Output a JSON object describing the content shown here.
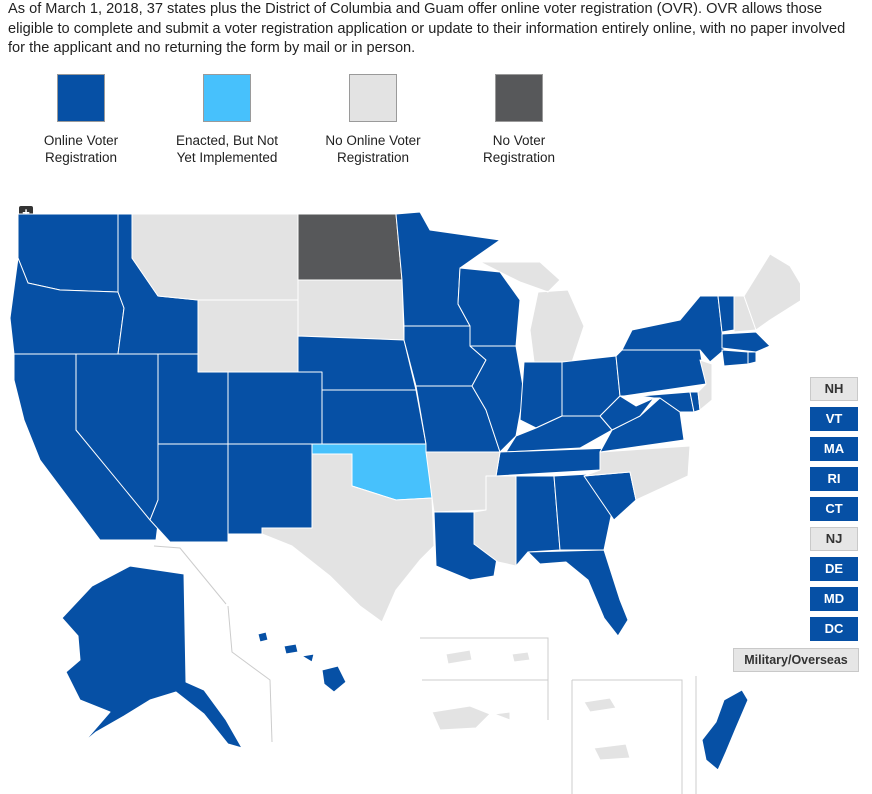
{
  "intro": "As of March 1, 2018, 37 states plus the District of Columbia and Guam offer online voter registration (OVR). OVR allows those eligible to complete and submit a voter registration application or update to their information entirely online, with no paper involved for the applicant and no returning the form by mail or in person.",
  "legend": [
    {
      "label_line1": "Online Voter",
      "label_line2": "Registration",
      "color": "#0650a5"
    },
    {
      "label_line1": "Enacted, But Not",
      "label_line2": "Yet Implemented",
      "color": "#47c1fc"
    },
    {
      "label_line1": "No Online Voter",
      "label_line2": "Registration",
      "color": "#e3e3e3"
    },
    {
      "label_line1": "No Voter",
      "label_line2": "Registration",
      "color": "#57585a"
    }
  ],
  "zoom": {
    "in": "+",
    "out": "−"
  },
  "small_states": [
    {
      "label": "NH",
      "status": "no-ovr"
    },
    {
      "label": "VT",
      "status": "ovr"
    },
    {
      "label": "MA",
      "status": "ovr"
    },
    {
      "label": "RI",
      "status": "ovr"
    },
    {
      "label": "CT",
      "status": "ovr"
    },
    {
      "label": "NJ",
      "status": "no-ovr"
    },
    {
      "label": "DE",
      "status": "ovr"
    },
    {
      "label": "MD",
      "status": "ovr"
    },
    {
      "label": "DC",
      "status": "ovr"
    }
  ],
  "military_label": "Military/Overseas",
  "colors": {
    "ovr": "#0650a5",
    "enacted": "#47c1fc",
    "no_ovr": "#e3e3e3",
    "no_vr": "#57585a"
  }
}
